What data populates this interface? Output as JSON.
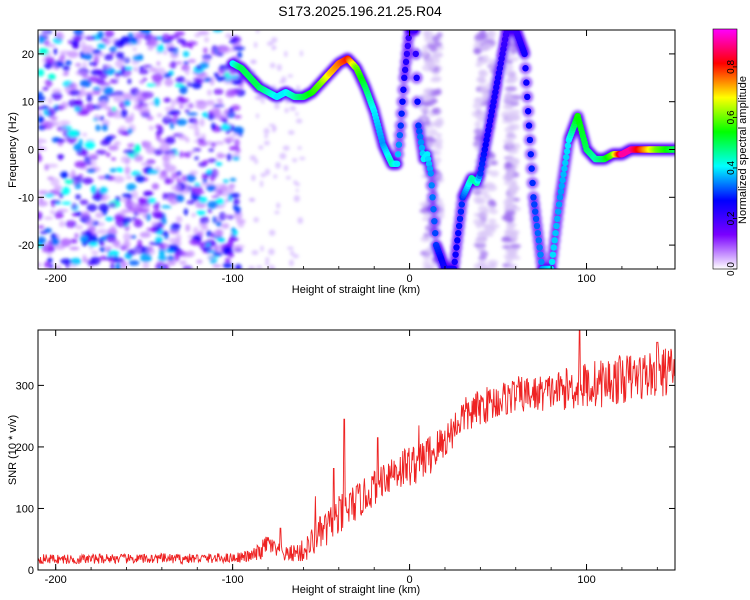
{
  "figure_title": "S173.2025.196.21.25.R04",
  "chart_data": [
    {
      "type": "heatmap",
      "title": "",
      "xlabel": "Height of straight line (km)",
      "ylabel": "Frequency (Hz)",
      "xlim": [
        -210,
        150
      ],
      "ylim": [
        -25,
        25
      ],
      "x_ticks": [
        -200,
        -100,
        0,
        100
      ],
      "y_ticks": [
        -20,
        -10,
        0,
        10,
        20
      ],
      "grid": false,
      "colorbar": {
        "label": "Normalized spectral amplitude",
        "range": [
          0.0,
          0.95
        ],
        "ticks": [
          "0.0",
          "0.2",
          "0.4",
          "0.6",
          "0.8"
        ],
        "tick_values": [
          0.0,
          0.2,
          0.4,
          0.6,
          0.8
        ],
        "colors": [
          "#ffffff",
          "#7a00ff",
          "#0000ff",
          "#00ffff",
          "#00ff00",
          "#ffff00",
          "#ff0000",
          "#ff00ff"
        ]
      },
      "ridge": {
        "x": [
          -100,
          -95,
          -90,
          -85,
          -80,
          -75,
          -70,
          -65,
          -60,
          -55,
          -50,
          -45,
          -40,
          -35,
          -30,
          -25,
          -20,
          -15,
          -10,
          -7,
          -5,
          -3,
          0,
          3,
          5,
          8,
          10,
          12,
          15,
          20,
          25,
          30,
          35,
          38,
          40,
          45,
          50,
          55,
          60,
          65,
          70,
          75,
          80,
          85,
          90,
          95,
          100,
          105,
          110,
          115,
          120,
          125,
          130,
          135,
          140,
          150
        ],
        "y": [
          18,
          17,
          15,
          13,
          12,
          11,
          12,
          11,
          11,
          12,
          14,
          16,
          18,
          19,
          17,
          13,
          8,
          1,
          -3,
          -3,
          5,
          15,
          25,
          25,
          5,
          -2,
          -1,
          -5,
          -20,
          -25,
          -25,
          -10,
          -6,
          -7,
          -5,
          5,
          15,
          25,
          25,
          20,
          -10,
          -25,
          -25,
          -10,
          2,
          7,
          0,
          -2,
          -2,
          -1,
          -1,
          0,
          0,
          0,
          0,
          0
        ],
        "amplitude": [
          0.4,
          0.5,
          0.5,
          0.5,
          0.45,
          0.4,
          0.4,
          0.45,
          0.5,
          0.55,
          0.6,
          0.7,
          0.75,
          0.8,
          0.6,
          0.5,
          0.4,
          0.35,
          0.45,
          0.4,
          0.3,
          0.25,
          0.2,
          0.2,
          0.3,
          0.4,
          0.4,
          0.35,
          0.3,
          0.25,
          0.25,
          0.3,
          0.45,
          0.45,
          0.3,
          0.25,
          0.25,
          0.2,
          0.2,
          0.25,
          0.3,
          0.35,
          0.4,
          0.35,
          0.4,
          0.55,
          0.5,
          0.45,
          0.5,
          0.6,
          0.9,
          0.9,
          0.8,
          0.7,
          0.6,
          0.5
        ]
      }
    },
    {
      "type": "line",
      "title": "",
      "xlabel": "Height of straight line (km)",
      "ylabel": "SNR (10 * v/v)",
      "xlim": [
        -210,
        150
      ],
      "ylim": [
        0,
        390
      ],
      "x_ticks": [
        -200,
        -100,
        0,
        100
      ],
      "y_ticks": [
        0,
        100,
        200,
        300
      ],
      "grid": false,
      "series": [
        {
          "color": "#ee2222",
          "x": [
            -210,
            -200,
            -190,
            -180,
            -170,
            -160,
            -150,
            -140,
            -130,
            -120,
            -110,
            -100,
            -90,
            -85,
            -80,
            -75,
            -70,
            -65,
            -60,
            -55,
            -50,
            -45,
            -40,
            -35,
            -30,
            -25,
            -20,
            -15,
            -10,
            -5,
            0,
            5,
            10,
            15,
            20,
            25,
            30,
            35,
            40,
            45,
            50,
            55,
            60,
            70,
            80,
            90,
            100,
            110,
            120,
            130,
            140,
            150
          ],
          "y": [
            18,
            18,
            17,
            18,
            19,
            18,
            18,
            19,
            18,
            19,
            19,
            20,
            22,
            28,
            45,
            30,
            25,
            28,
            30,
            45,
            60,
            70,
            85,
            100,
            110,
            120,
            135,
            150,
            160,
            165,
            170,
            175,
            185,
            195,
            210,
            230,
            250,
            255,
            265,
            270,
            275,
            280,
            285,
            285,
            290,
            295,
            300,
            305,
            310,
            315,
            320,
            325
          ],
          "noise": [
            8,
            8,
            8,
            8,
            8,
            8,
            8,
            8,
            8,
            8,
            8,
            8,
            10,
            15,
            15,
            15,
            12,
            15,
            20,
            25,
            30,
            35,
            35,
            35,
            30,
            30,
            30,
            30,
            35,
            35,
            35,
            35,
            35,
            35,
            30,
            30,
            30,
            30,
            30,
            30,
            30,
            30,
            30,
            30,
            30,
            35,
            40,
            40,
            40,
            40,
            40,
            40
          ],
          "spikes": [
            [
              -73,
              68
            ],
            [
              -53,
              120
            ],
            [
              -43,
              165
            ],
            [
              -37,
              245
            ],
            [
              -18,
              215
            ],
            [
              5,
              235
            ],
            [
              96,
              390
            ],
            [
              140,
              370
            ]
          ]
        }
      ]
    }
  ]
}
